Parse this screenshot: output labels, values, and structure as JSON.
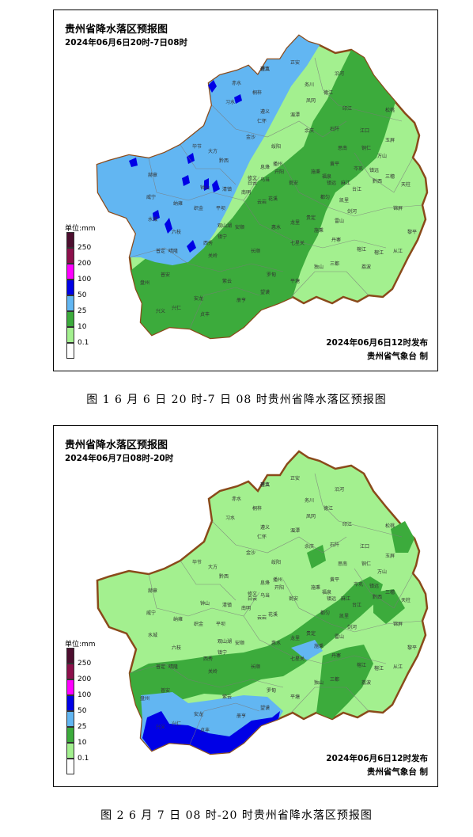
{
  "maps": [
    {
      "title": "贵州省降水落区预报图",
      "period": "2024年06月6日20时-7日08时",
      "issued": "2024年06月6日12时发布",
      "issuer": "贵州省气象台 制",
      "caption": "图 1   6 月 6 日 20 时-7 日 08 时贵州省降水落区预报图",
      "legend": {
        "unit": "单位:mm",
        "levels": [
          {
            "label": "250",
            "color": "#4d0e2f"
          },
          {
            "label": "200",
            "color": "#8c0f4b"
          },
          {
            "label": "100",
            "color": "#ff00ff"
          },
          {
            "label": "50",
            "color": "#0000e6"
          },
          {
            "label": "25",
            "color": "#62b6f2"
          },
          {
            "label": "10",
            "color": "#3cab3c"
          },
          {
            "label": "0.1",
            "color": "#a3f08f"
          }
        ]
      }
    },
    {
      "title": "贵州省降水落区预报图",
      "period": "2024年06月7日08时-20时",
      "issued": "2024年06月6日12时发布",
      "issuer": "贵州省气象台 制",
      "caption": "图 2   6 月 7 日 08 时-20 时贵州省降水落区预报图",
      "legend": {
        "unit": "单位:mm",
        "levels": [
          {
            "label": "250",
            "color": "#4d0e2f"
          },
          {
            "label": "200",
            "color": "#8c0f4b"
          },
          {
            "label": "100",
            "color": "#ff00ff"
          },
          {
            "label": "50",
            "color": "#0000e6"
          },
          {
            "label": "25",
            "color": "#62b6f2"
          },
          {
            "label": "10",
            "color": "#3cab3c"
          },
          {
            "label": "0.1",
            "color": "#a3f08f"
          }
        ]
      }
    }
  ],
  "county_labels": [
    "道真",
    "正安",
    "务川",
    "沿河",
    "桐梓",
    "习水",
    "赤水",
    "湄潭",
    "凤冈",
    "德江",
    "印江",
    "松桃",
    "余庆",
    "石阡",
    "江口",
    "玉屏",
    "思南",
    "铜仁",
    "万山",
    "岑巩",
    "镇远",
    "三穗",
    "天柱",
    "锦屏",
    "黎平",
    "从江",
    "榕江",
    "剑河",
    "台江",
    "雷山",
    "丹寨",
    "三都",
    "荔波",
    "独山",
    "平塘",
    "罗甸",
    "长顺",
    "惠水",
    "龙里",
    "贵定",
    "都匀",
    "福泉",
    "麻江",
    "凯里",
    "黄平",
    "施秉",
    "瓮安",
    "开阳",
    "息烽",
    "修文",
    "清镇",
    "平坝",
    "安顺",
    "镇宁",
    "关岭",
    "紫云",
    "望谟",
    "册亨",
    "安龙",
    "兴义",
    "兴仁",
    "贞丰",
    "普安",
    "晴隆",
    "盘州",
    "六枝",
    "水城",
    "纳雍",
    "织金",
    "黔西",
    "大方",
    "毕节",
    "赫章",
    "威宁",
    "金沙",
    "仁怀",
    "遵义",
    "绥阳",
    "播州",
    "乌当",
    "白云",
    "花溪",
    "云岩",
    "南明",
    "观山湖",
    "西秀",
    "普定",
    "钟山",
    "七星关",
    "黔西",
    "榕江",
    "镇远",
    "施秉",
    "碧江"
  ]
}
